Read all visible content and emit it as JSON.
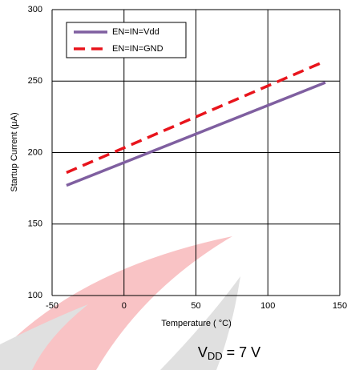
{
  "chart_data": {
    "type": "line",
    "x_label": "Temperature ( °C)",
    "y_label": "Startup Current (µA)",
    "annotation": {
      "base": "V",
      "sub": "DD",
      "rest": " = 7 V"
    },
    "x": [
      -40,
      140
    ],
    "series": [
      {
        "name": "EN=IN=Vdd",
        "color": "#7f5fa0",
        "dash": false,
        "values": [
          177,
          249
        ]
      },
      {
        "name": "EN=IN=GND",
        "color": "#e8141c",
        "dash": true,
        "values": [
          186,
          264
        ]
      }
    ],
    "xlim": [
      -50,
      150
    ],
    "xticks": [
      -50,
      0,
      50,
      100,
      150
    ],
    "ylim": [
      100,
      300
    ],
    "yticks": [
      100,
      150,
      200,
      250,
      300
    ],
    "grid": true,
    "legend": "top-left"
  }
}
